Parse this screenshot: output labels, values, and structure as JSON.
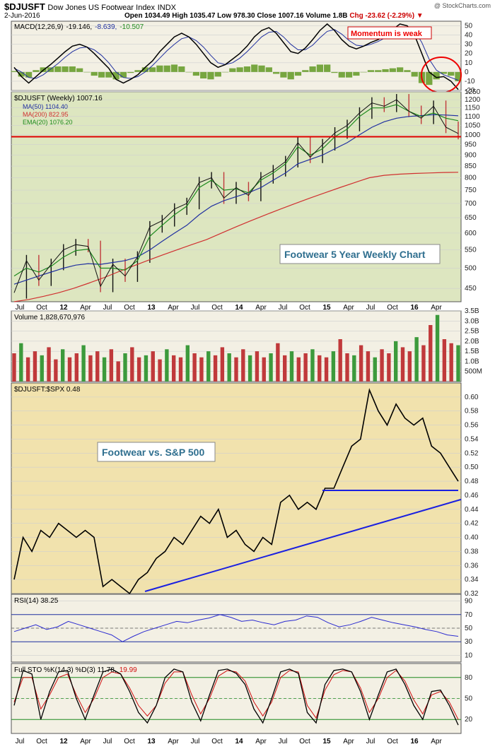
{
  "header": {
    "symbol": "$DJUSFT",
    "name": "Dow Jones US Footwear Index",
    "exchange": "INDX",
    "watermark": "@ StockCharts.com",
    "date": "2-Jun-2016",
    "quote": "Open 1034.49  High 1035.47  Low 978.30  Close 1007.16  Volume 1.8B",
    "change": "Chg -23.62 (-2.29%) ▼"
  },
  "colors": {
    "price_bg": "#dde6c0",
    "ratio_bg": "#f1e2ad",
    "panel_bg": "#f3f0e4",
    "up_bar": "#3c9a3c",
    "down_bar": "#c0393b",
    "ma50": "#2030a0",
    "ma200": "#d03030",
    "ema20": "#1e8a1e",
    "support": "#e00000",
    "trend": "#1a20e0"
  },
  "x_axis": {
    "labels": [
      "Jul",
      "Oct",
      "12",
      "Apr",
      "Jul",
      "Oct",
      "13",
      "Apr",
      "Jul",
      "Oct",
      "14",
      "Apr",
      "Jul",
      "Oct",
      "15",
      "Apr",
      "Jul",
      "Oct",
      "16",
      "Apr"
    ],
    "bold_labels": [
      "12",
      "13",
      "14",
      "15",
      "16"
    ]
  },
  "chart_data": [
    {
      "type": "line",
      "name": "macd",
      "legend": "MACD(12,26,9) -19.146, -8.639, -10.507",
      "legend_parts": [
        "MACD(12,26,9)",
        "-19.146,",
        "-8.639,",
        "-10.507"
      ],
      "ylim": [
        -20,
        55
      ],
      "yticks": [
        50,
        40,
        30,
        20,
        10,
        0,
        -10,
        -20
      ],
      "callout": "Momentum is weak",
      "series": [
        {
          "name": "MACD",
          "values": [
            5,
            -5,
            -12,
            -5,
            2,
            8,
            15,
            22,
            28,
            30,
            27,
            20,
            12,
            4,
            -8,
            -12,
            -8,
            -3,
            5,
            12,
            22,
            30,
            38,
            42,
            38,
            30,
            20,
            10,
            5,
            8,
            14,
            20,
            28,
            38,
            45,
            48,
            42,
            32,
            22,
            20,
            26,
            35,
            45,
            52,
            45,
            35,
            28,
            25,
            28,
            32,
            35,
            40,
            46,
            52,
            50,
            40,
            20,
            0,
            -6,
            -5,
            -10,
            -19
          ]
        },
        {
          "name": "Signal",
          "values": [
            4,
            0,
            -6,
            -7,
            -3,
            3,
            9,
            16,
            22,
            26,
            27,
            24,
            18,
            10,
            0,
            -6,
            -7,
            -5,
            0,
            7,
            15,
            23,
            30,
            36,
            38,
            34,
            27,
            18,
            10,
            8,
            10,
            15,
            22,
            30,
            38,
            43,
            44,
            38,
            30,
            24,
            24,
            29,
            37,
            44,
            46,
            41,
            34,
            29,
            28,
            30,
            33,
            37,
            42,
            47,
            48,
            45,
            32,
            14,
            2,
            -3,
            -6,
            -9
          ]
        }
      ]
    },
    {
      "type": "line",
      "name": "price",
      "legend": "$DJUSFT (Weekly) 1007.16",
      "ylim": [
        420,
        1250
      ],
      "log_scale": true,
      "yticks": [
        1250,
        1200,
        1150,
        1100,
        1050,
        1000,
        950,
        900,
        850,
        800,
        750,
        700,
        650,
        600,
        550,
        500,
        450
      ],
      "annotation": "Footwear 5 Year Weekly Chart",
      "support_level": 990,
      "series": [
        {
          "name": "$DJUSFT",
          "values": [
            440,
            520,
            470,
            510,
            550,
            565,
            560,
            455,
            510,
            480,
            530,
            620,
            640,
            680,
            700,
            780,
            800,
            720,
            760,
            730,
            800,
            830,
            870,
            960,
            890,
            950,
            1010,
            1050,
            1120,
            1180,
            1160,
            1200,
            1130,
            1090,
            1160,
            1040,
            1007
          ]
        },
        {
          "name": "MA(50)",
          "legend": "MA(50) 1104.40",
          "values": [
            460,
            470,
            480,
            490,
            500,
            508,
            512,
            510,
            515,
            520,
            530,
            550,
            575,
            600,
            625,
            660,
            690,
            710,
            725,
            740,
            760,
            790,
            820,
            860,
            880,
            900,
            930,
            960,
            1000,
            1040,
            1070,
            1090,
            1100,
            1105,
            1110,
            1108,
            1104
          ]
        },
        {
          "name": "MA(200)",
          "legend": "MA(200) 822.95",
          "values": [
            420,
            425,
            432,
            440,
            450,
            462,
            475,
            490,
            505,
            520,
            535,
            550,
            565,
            580,
            600,
            620,
            640,
            660,
            680,
            700,
            720,
            740,
            760,
            780,
            800,
            810,
            815,
            818,
            820,
            822,
            823
          ]
        },
        {
          "name": "EMA(20)",
          "legend": "EMA(20) 1076.20",
          "values": [
            480,
            500,
            490,
            505,
            530,
            548,
            552,
            500,
            500,
            495,
            520,
            590,
            625,
            660,
            690,
            760,
            790,
            750,
            755,
            740,
            790,
            820,
            860,
            940,
            900,
            930,
            990,
            1030,
            1100,
            1150,
            1150,
            1170,
            1130,
            1100,
            1120,
            1090,
            1076
          ]
        }
      ]
    },
    {
      "type": "bar",
      "name": "volume",
      "legend": "Volume 1,828,670,976",
      "ylim": [
        0,
        3.5
      ],
      "ytick_labels": [
        "3.5B",
        "3.0B",
        "2.5B",
        "2.0B",
        "1.5B",
        "1.0B",
        "500M"
      ],
      "ytick_values": [
        3.5,
        3.0,
        2.5,
        2.0,
        1.5,
        1.0,
        0.5
      ],
      "values": [
        1.4,
        1.9,
        1.2,
        1.5,
        1.3,
        1.7,
        1.1,
        1.6,
        1.2,
        1.4,
        1.8,
        1.3,
        1.5,
        1.2,
        1.6,
        1.0,
        1.4,
        1.7,
        1.2,
        1.3,
        1.5,
        1.1,
        1.6,
        1.3,
        1.2,
        1.8,
        1.4,
        1.2,
        1.5,
        1.3,
        1.7,
        1.4,
        1.2,
        1.6,
        1.3,
        1.5,
        1.2,
        1.4,
        1.9,
        1.3,
        1.5,
        1.2,
        1.4,
        1.6,
        1.3,
        1.2,
        1.5,
        2.1,
        1.4,
        1.3,
        1.8,
        1.5,
        1.2,
        1.6,
        1.4,
        2.0,
        1.7,
        1.5,
        2.2,
        1.8,
        2.8,
        3.3,
        2.1,
        1.9,
        1.8
      ]
    },
    {
      "type": "line",
      "name": "ratio",
      "legend": "$DJUSFT:$SPX 0.48",
      "ylim": [
        0.32,
        0.62
      ],
      "yticks": [
        0.6,
        0.58,
        0.56,
        0.54,
        0.52,
        0.5,
        0.48,
        0.46,
        0.44,
        0.42,
        0.4,
        0.38,
        0.36,
        0.34,
        0.32
      ],
      "annotation": "Footwear vs. S&P 500",
      "horizontal_level": 0.467,
      "values": [
        0.34,
        0.4,
        0.38,
        0.41,
        0.4,
        0.42,
        0.41,
        0.4,
        0.41,
        0.4,
        0.33,
        0.34,
        0.33,
        0.32,
        0.34,
        0.35,
        0.37,
        0.38,
        0.4,
        0.39,
        0.41,
        0.43,
        0.42,
        0.44,
        0.4,
        0.41,
        0.39,
        0.38,
        0.4,
        0.39,
        0.45,
        0.46,
        0.44,
        0.45,
        0.44,
        0.47,
        0.47,
        0.5,
        0.53,
        0.54,
        0.61,
        0.58,
        0.56,
        0.59,
        0.57,
        0.56,
        0.57,
        0.53,
        0.52,
        0.5,
        0.48
      ],
      "trendline": [
        [
          0.14,
          0.323
        ],
        [
          1.0,
          0.454
        ]
      ]
    },
    {
      "type": "line",
      "name": "rsi",
      "legend": "RSI(14) 38.25",
      "ylim": [
        0,
        100
      ],
      "yticks": [
        90,
        70,
        50,
        30,
        10
      ],
      "levels": [
        70,
        30
      ],
      "values": [
        45,
        50,
        55,
        48,
        52,
        60,
        55,
        50,
        45,
        40,
        30,
        38,
        45,
        50,
        55,
        60,
        58,
        62,
        65,
        70,
        66,
        60,
        62,
        58,
        55,
        60,
        62,
        68,
        66,
        58,
        52,
        55,
        60,
        66,
        62,
        58,
        55,
        52,
        48,
        45,
        40,
        38
      ]
    },
    {
      "type": "line",
      "name": "stochastic",
      "legend": "Full STO %K(14,3) %D(3) 11.78, 19.99",
      "legend_parts": [
        "Full STO %K(14,3) %D(3) 11.78,",
        "19.99"
      ],
      "ylim": [
        0,
        100
      ],
      "yticks": [
        80,
        50,
        20
      ],
      "levels": [
        80,
        20
      ],
      "series": [
        {
          "name": "%K",
          "values": [
            40,
            90,
            85,
            20,
            60,
            88,
            90,
            50,
            20,
            55,
            88,
            92,
            85,
            60,
            30,
            15,
            40,
            80,
            92,
            88,
            45,
            18,
            55,
            90,
            92,
            86,
            70,
            35,
            15,
            50,
            88,
            92,
            86,
            30,
            15,
            70,
            90,
            92,
            88,
            60,
            20,
            55,
            88,
            92,
            70,
            40,
            20,
            60,
            62,
            40,
            12
          ]
        },
        {
          "name": "%D",
          "values": [
            45,
            80,
            80,
            35,
            55,
            80,
            85,
            55,
            30,
            50,
            80,
            88,
            85,
            65,
            40,
            25,
            40,
            72,
            88,
            88,
            55,
            28,
            50,
            82,
            90,
            88,
            75,
            45,
            25,
            45,
            80,
            90,
            88,
            40,
            22,
            62,
            84,
            90,
            88,
            65,
            30,
            50,
            80,
            90,
            75,
            48,
            28,
            55,
            60,
            45,
            20
          ]
        }
      ]
    }
  ]
}
